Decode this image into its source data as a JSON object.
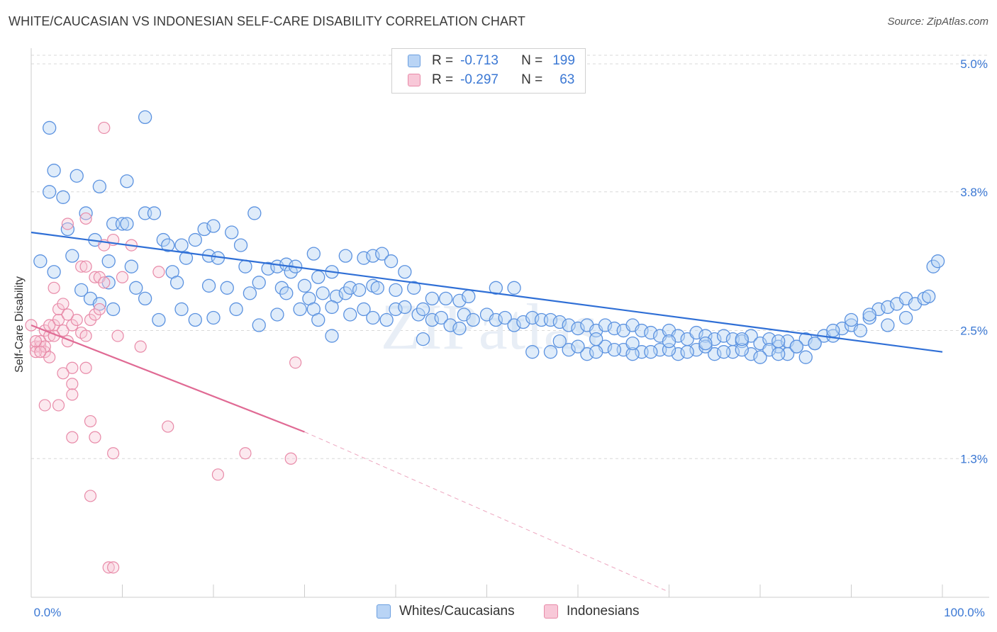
{
  "title": "WHITE/CAUCASIAN VS INDONESIAN SELF-CARE DISABILITY CORRELATION CHART",
  "source": "Source: ZipAtlas.com",
  "watermark": "ZIPatlas",
  "legend_top": {
    "rows": [
      {
        "r_label": "R =",
        "r_value": "-0.713",
        "n_label": "N =",
        "n_value": "199"
      },
      {
        "r_label": "R =",
        "r_value": "-0.297",
        "n_label": "N =",
        "n_value": "63"
      }
    ]
  },
  "legend_bottom": [
    "Whites/Caucasians",
    "Indonesians"
  ],
  "colors": {
    "blue": "#5b92e0",
    "blue_fill": "#b9d4f5",
    "blue_line": "#2f6fd6",
    "pink": "#e88aa8",
    "pink_fill": "#f8c8d8",
    "pink_line": "#e06a94",
    "grid": "#d9d9d9",
    "tick_label": "#3b78d4"
  },
  "chart_data": {
    "type": "scatter",
    "ylabel": "Self-Care Disability",
    "xlim": [
      0,
      100
    ],
    "ylim": [
      0,
      5.2
    ],
    "x_tick_labels": [
      "0.0%",
      "100.0%"
    ],
    "y_ticks": [
      1.3,
      2.5,
      3.8,
      5.0
    ],
    "y_tick_labels": [
      "1.3%",
      "2.5%",
      "3.8%",
      "5.0%"
    ],
    "grid": "horizontal dashed",
    "series": [
      {
        "name": "Whites/Caucasians",
        "color": "#5b92e0",
        "trend": {
          "x": [
            0,
            100
          ],
          "y": [
            3.42,
            2.3
          ]
        },
        "points": [
          [
            2,
            4.4
          ],
          [
            2.5,
            4.0
          ],
          [
            5,
            3.95
          ],
          [
            12.5,
            4.5
          ],
          [
            3.5,
            3.75
          ],
          [
            2,
            3.8
          ],
          [
            7.5,
            3.85
          ],
          [
            10.5,
            3.9
          ],
          [
            6,
            3.6
          ],
          [
            9,
            3.5
          ],
          [
            12.5,
            3.6
          ],
          [
            13.5,
            3.6
          ],
          [
            10,
            3.5
          ],
          [
            24.5,
            3.6
          ],
          [
            4,
            3.45
          ],
          [
            7,
            3.35
          ],
          [
            10.5,
            3.5
          ],
          [
            14.5,
            3.35
          ],
          [
            15,
            3.3
          ],
          [
            16.5,
            3.3
          ],
          [
            18,
            3.35
          ],
          [
            19,
            3.45
          ],
          [
            20,
            3.48
          ],
          [
            22,
            3.42
          ],
          [
            23,
            3.3
          ],
          [
            4.5,
            3.2
          ],
          [
            8.5,
            3.15
          ],
          [
            11,
            3.1
          ],
          [
            15.5,
            3.05
          ],
          [
            17,
            3.18
          ],
          [
            19.5,
            3.2
          ],
          [
            20.5,
            3.18
          ],
          [
            23.5,
            3.1
          ],
          [
            26,
            3.08
          ],
          [
            27,
            3.1
          ],
          [
            28,
            3.12
          ],
          [
            28.5,
            3.05
          ],
          [
            29,
            3.1
          ],
          [
            31,
            3.22
          ],
          [
            31.5,
            3.0
          ],
          [
            33,
            3.05
          ],
          [
            34.5,
            3.2
          ],
          [
            36.5,
            3.18
          ],
          [
            37.5,
            3.2
          ],
          [
            38.5,
            3.22
          ],
          [
            39.5,
            3.15
          ],
          [
            41,
            3.05
          ],
          [
            2.5,
            3.05
          ],
          [
            1,
            3.15
          ],
          [
            5.5,
            2.88
          ],
          [
            8.5,
            2.95
          ],
          [
            11.5,
            2.9
          ],
          [
            16,
            2.95
          ],
          [
            19.5,
            2.92
          ],
          [
            21.5,
            2.9
          ],
          [
            24,
            2.85
          ],
          [
            25,
            2.95
          ],
          [
            27.5,
            2.9
          ],
          [
            28,
            2.85
          ],
          [
            30,
            2.92
          ],
          [
            30.5,
            2.8
          ],
          [
            31,
            2.7
          ],
          [
            32,
            2.85
          ],
          [
            33.5,
            2.82
          ],
          [
            34.5,
            2.85
          ],
          [
            35,
            2.9
          ],
          [
            36,
            2.88
          ],
          [
            37.5,
            2.92
          ],
          [
            38,
            2.9
          ],
          [
            40,
            2.88
          ],
          [
            42,
            2.9
          ],
          [
            44,
            2.8
          ],
          [
            45.5,
            2.8
          ],
          [
            47,
            2.78
          ],
          [
            48,
            2.82
          ],
          [
            51,
            2.9
          ],
          [
            53,
            2.9
          ],
          [
            6.5,
            2.8
          ],
          [
            7.5,
            2.75
          ],
          [
            9,
            2.7
          ],
          [
            12.5,
            2.8
          ],
          [
            14,
            2.6
          ],
          [
            16.5,
            2.7
          ],
          [
            18,
            2.6
          ],
          [
            20,
            2.62
          ],
          [
            22.5,
            2.7
          ],
          [
            27,
            2.65
          ],
          [
            29.5,
            2.7
          ],
          [
            31.5,
            2.6
          ],
          [
            33,
            2.72
          ],
          [
            35,
            2.65
          ],
          [
            36.5,
            2.7
          ],
          [
            37.5,
            2.62
          ],
          [
            39,
            2.6
          ],
          [
            40,
            2.7
          ],
          [
            41,
            2.72
          ],
          [
            42.5,
            2.65
          ],
          [
            43,
            2.7
          ],
          [
            44,
            2.6
          ],
          [
            45,
            2.62
          ],
          [
            46,
            2.55
          ],
          [
            47.5,
            2.65
          ],
          [
            48.5,
            2.6
          ],
          [
            50,
            2.65
          ],
          [
            51,
            2.6
          ],
          [
            52,
            2.62
          ],
          [
            53,
            2.55
          ],
          [
            54,
            2.58
          ],
          [
            55,
            2.62
          ],
          [
            56,
            2.6
          ],
          [
            57,
            2.6
          ],
          [
            58,
            2.58
          ],
          [
            59,
            2.55
          ],
          [
            60,
            2.52
          ],
          [
            61,
            2.55
          ],
          [
            62,
            2.5
          ],
          [
            63,
            2.55
          ],
          [
            64,
            2.52
          ],
          [
            65,
            2.5
          ],
          [
            66,
            2.55
          ],
          [
            67,
            2.5
          ],
          [
            68,
            2.48
          ],
          [
            69,
            2.45
          ],
          [
            70,
            2.5
          ],
          [
            71,
            2.45
          ],
          [
            72,
            2.42
          ],
          [
            73,
            2.48
          ],
          [
            74,
            2.45
          ],
          [
            75,
            2.42
          ],
          [
            76,
            2.45
          ],
          [
            77,
            2.42
          ],
          [
            78,
            2.4
          ],
          [
            79,
            2.45
          ],
          [
            80,
            2.38
          ],
          [
            81,
            2.42
          ],
          [
            82,
            2.35
          ],
          [
            83,
            2.4
          ],
          [
            84,
            2.35
          ],
          [
            85,
            2.42
          ],
          [
            86,
            2.38
          ],
          [
            87,
            2.45
          ],
          [
            88,
            2.45
          ],
          [
            89,
            2.52
          ],
          [
            90,
            2.55
          ],
          [
            91,
            2.5
          ],
          [
            92,
            2.62
          ],
          [
            93,
            2.7
          ],
          [
            94,
            2.72
          ],
          [
            95,
            2.75
          ],
          [
            96,
            2.8
          ],
          [
            97,
            2.75
          ],
          [
            98,
            2.8
          ],
          [
            98.5,
            2.82
          ],
          [
            99,
            3.1
          ],
          [
            99.5,
            3.15
          ],
          [
            25,
            2.55
          ],
          [
            33,
            2.45
          ],
          [
            43,
            2.42
          ],
          [
            47,
            2.52
          ],
          [
            55,
            2.3
          ],
          [
            57,
            2.3
          ],
          [
            59,
            2.32
          ],
          [
            61,
            2.28
          ],
          [
            63,
            2.35
          ],
          [
            65,
            2.32
          ],
          [
            67,
            2.3
          ],
          [
            69,
            2.32
          ],
          [
            71,
            2.28
          ],
          [
            73,
            2.32
          ],
          [
            75,
            2.28
          ],
          [
            77,
            2.3
          ],
          [
            79,
            2.28
          ],
          [
            81,
            2.32
          ],
          [
            83,
            2.28
          ],
          [
            85,
            2.25
          ],
          [
            60,
            2.35
          ],
          [
            62,
            2.3
          ],
          [
            64,
            2.32
          ],
          [
            66,
            2.28
          ],
          [
            68,
            2.3
          ],
          [
            70,
            2.32
          ],
          [
            72,
            2.3
          ],
          [
            74,
            2.35
          ],
          [
            76,
            2.3
          ],
          [
            78,
            2.32
          ],
          [
            80,
            2.25
          ],
          [
            82,
            2.28
          ],
          [
            84,
            2.35
          ],
          [
            86,
            2.38
          ],
          [
            88,
            2.5
          ],
          [
            90,
            2.6
          ],
          [
            92,
            2.65
          ],
          [
            94,
            2.55
          ],
          [
            96,
            2.62
          ],
          [
            58,
            2.4
          ],
          [
            62,
            2.42
          ],
          [
            66,
            2.38
          ],
          [
            70,
            2.4
          ],
          [
            74,
            2.38
          ],
          [
            78,
            2.42
          ],
          [
            82,
            2.4
          ]
        ]
      },
      {
        "name": "Indonesians",
        "color": "#e88aa8",
        "trend": {
          "x": [
            0,
            30
          ],
          "y": [
            2.55,
            1.55
          ]
        },
        "trend_dashed": {
          "x": [
            30,
            70
          ],
          "y": [
            1.55,
            0.05
          ]
        },
        "points": [
          [
            0,
            2.55
          ],
          [
            0.5,
            2.35
          ],
          [
            1,
            2.35
          ],
          [
            1.5,
            2.3
          ],
          [
            2,
            2.25
          ],
          [
            0.5,
            2.3
          ],
          [
            1,
            2.4
          ],
          [
            1.5,
            2.5
          ],
          [
            2,
            2.45
          ],
          [
            2.5,
            2.55
          ],
          [
            3,
            2.6
          ],
          [
            3.5,
            2.5
          ],
          [
            4,
            2.4
          ],
          [
            4.5,
            2.55
          ],
          [
            5,
            2.6
          ],
          [
            5.5,
            2.48
          ],
          [
            6,
            2.45
          ],
          [
            6.5,
            2.6
          ],
          [
            7,
            2.65
          ],
          [
            7.5,
            2.7
          ],
          [
            2.5,
            2.9
          ],
          [
            3,
            2.7
          ],
          [
            3.5,
            2.75
          ],
          [
            4,
            2.65
          ],
          [
            5.5,
            3.1
          ],
          [
            6,
            3.1
          ],
          [
            7,
            3.0
          ],
          [
            7.5,
            3.0
          ],
          [
            8,
            3.3
          ],
          [
            9,
            3.35
          ],
          [
            10,
            3.0
          ],
          [
            11,
            3.3
          ],
          [
            14,
            3.05
          ],
          [
            6,
            3.55
          ],
          [
            4,
            3.5
          ],
          [
            8,
            2.95
          ],
          [
            9.5,
            2.45
          ],
          [
            12,
            2.35
          ],
          [
            1.5,
            2.35
          ],
          [
            2.5,
            2.45
          ],
          [
            4.5,
            2.15
          ],
          [
            6,
            2.15
          ],
          [
            3.5,
            2.1
          ],
          [
            4.5,
            2.0
          ],
          [
            1.5,
            1.8
          ],
          [
            3,
            1.8
          ],
          [
            4.5,
            1.9
          ],
          [
            29,
            2.2
          ],
          [
            6.5,
            1.65
          ],
          [
            15,
            1.6
          ],
          [
            7,
            1.5
          ],
          [
            4.5,
            1.5
          ],
          [
            9,
            1.35
          ],
          [
            23.5,
            1.35
          ],
          [
            28.5,
            1.3
          ],
          [
            20.5,
            1.15
          ],
          [
            6.5,
            0.95
          ],
          [
            8.5,
            0.28
          ],
          [
            9,
            0.28
          ],
          [
            8,
            4.4
          ],
          [
            1,
            2.3
          ],
          [
            0.5,
            2.4
          ],
          [
            2,
            2.55
          ]
        ]
      }
    ]
  }
}
